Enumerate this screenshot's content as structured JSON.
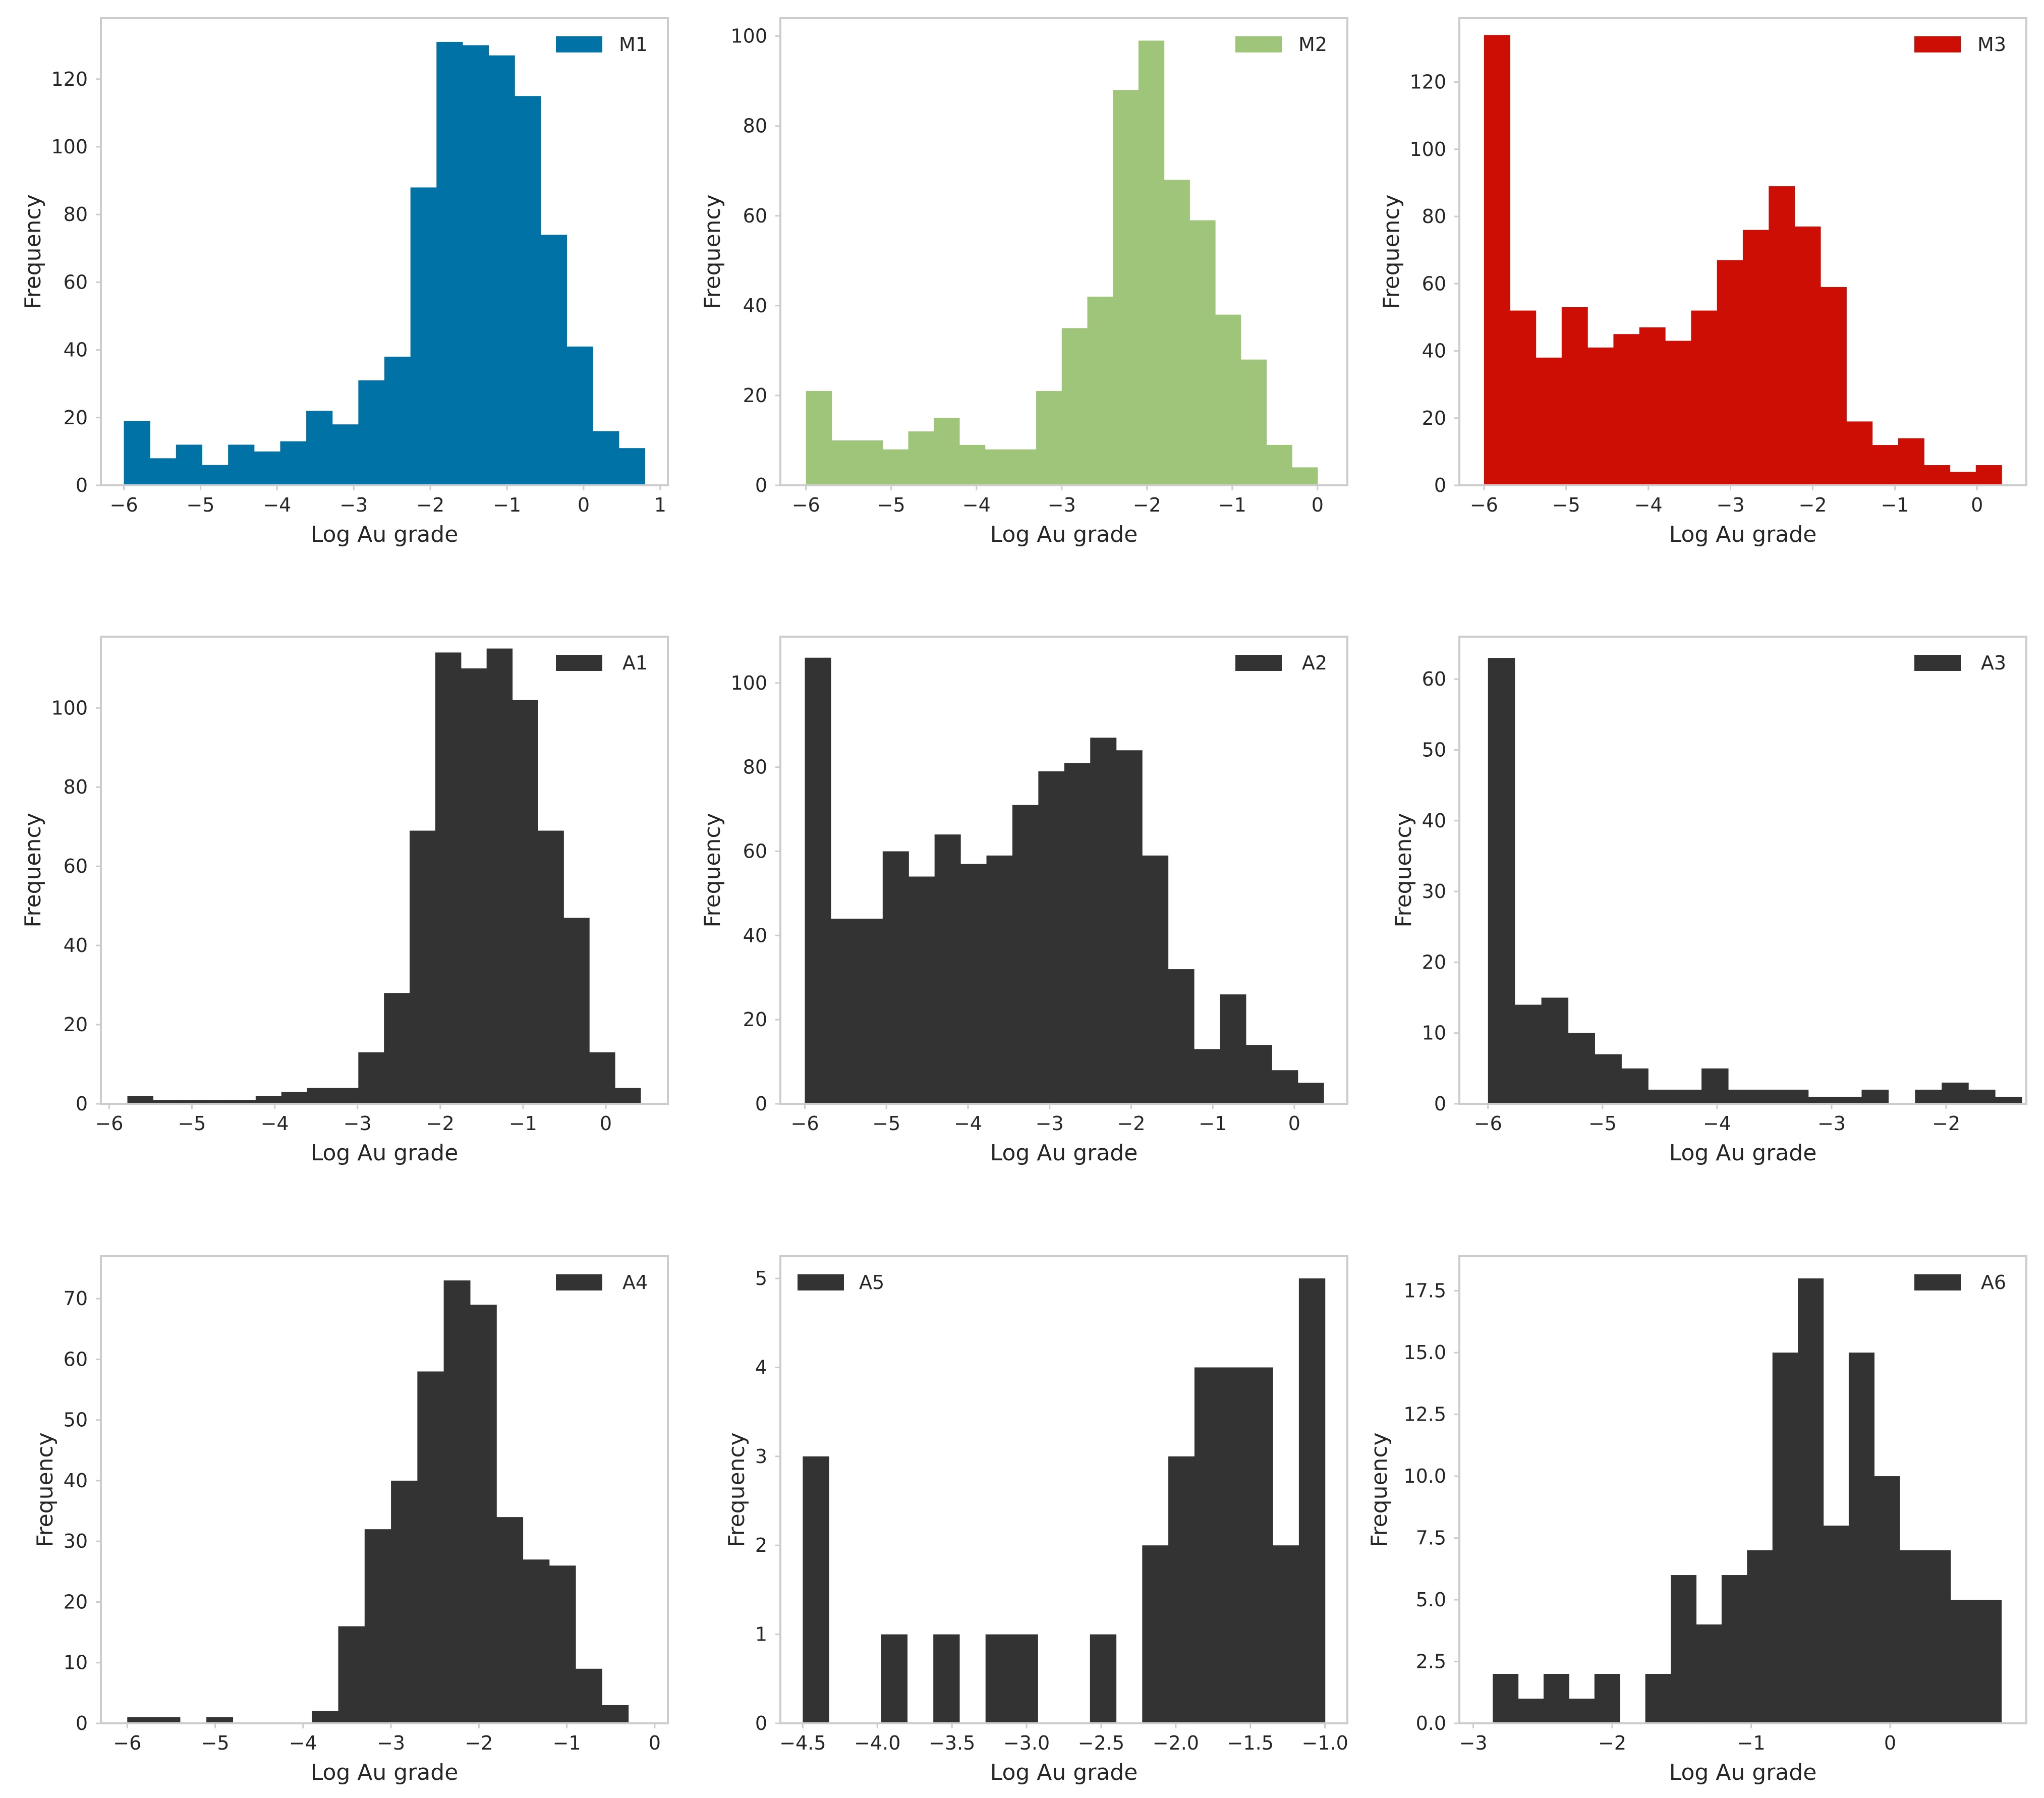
{
  "figure": {
    "title": ""
  },
  "chart_data": [
    {
      "type": "bar",
      "label": "M1",
      "color": "#0072a6",
      "xlabel": "Log Au grade",
      "ylabel": "Frequency",
      "legend": "top-right",
      "xlim": [
        -6.3,
        1.1
      ],
      "ylim": [
        0,
        138
      ],
      "xticks": [
        -6,
        -5,
        -4,
        -3,
        -2,
        -1,
        0,
        1
      ],
      "xtick_labels": [
        "−6",
        "−5",
        "−4",
        "−3",
        "−2",
        "−1",
        "0",
        "1"
      ],
      "yticks": [
        0,
        20,
        40,
        60,
        80,
        100,
        120
      ],
      "ytick_labels": [
        "0",
        "20",
        "40",
        "60",
        "80",
        "100",
        "120"
      ],
      "bin_start": -6.0,
      "bin_width": 0.34,
      "values": [
        19,
        8,
        12,
        6,
        12,
        10,
        13,
        22,
        18,
        31,
        38,
        88,
        131,
        130,
        127,
        115,
        74,
        41,
        16,
        11
      ]
    },
    {
      "type": "bar",
      "label": "M2",
      "color": "#9fc57a",
      "xlabel": "Log Au grade",
      "ylabel": "Frequency",
      "legend": "top-right",
      "xlim": [
        -6.3,
        0.35
      ],
      "ylim": [
        0,
        104
      ],
      "xticks": [
        -6,
        -5,
        -4,
        -3,
        -2,
        -1,
        0
      ],
      "xtick_labels": [
        "−6",
        "−5",
        "−4",
        "−3",
        "−2",
        "−1",
        "0"
      ],
      "yticks": [
        0,
        20,
        40,
        60,
        80,
        100
      ],
      "ytick_labels": [
        "0",
        "20",
        "40",
        "60",
        "80",
        "100"
      ],
      "bin_start": -6.0,
      "bin_width": 0.3,
      "values": [
        21,
        10,
        10,
        8,
        12,
        15,
        9,
        8,
        8,
        21,
        35,
        42,
        88,
        99,
        68,
        59,
        38,
        28,
        9,
        4
      ]
    },
    {
      "type": "bar",
      "label": "M3",
      "color": "#cc0e04",
      "xlabel": "Log Au grade",
      "ylabel": "Frequency",
      "legend": "top-right",
      "xlim": [
        -6.3,
        0.6
      ],
      "ylim": [
        0,
        139
      ],
      "xticks": [
        -6,
        -5,
        -4,
        -3,
        -2,
        -1,
        0
      ],
      "xtick_labels": [
        "−6",
        "−5",
        "−4",
        "−3",
        "−2",
        "−1",
        "0"
      ],
      "yticks": [
        0,
        20,
        40,
        60,
        80,
        100,
        120
      ],
      "ytick_labels": [
        "0",
        "20",
        "40",
        "60",
        "80",
        "100",
        "120"
      ],
      "bin_start": -6.0,
      "bin_width": 0.315,
      "values": [
        134,
        52,
        38,
        53,
        41,
        45,
        47,
        43,
        52,
        67,
        76,
        89,
        77,
        59,
        19,
        12,
        14,
        6,
        4,
        6
      ]
    },
    {
      "type": "bar",
      "label": "A1",
      "color": "#333333",
      "xlabel": "Log Au grade",
      "ylabel": "Frequency",
      "legend": "top-right",
      "xlim": [
        -6.1,
        0.75
      ],
      "ylim": [
        0,
        118
      ],
      "xticks": [
        -6,
        -5,
        -4,
        -3,
        -2,
        -1,
        0
      ],
      "xtick_labels": [
        "−6",
        "−5",
        "−4",
        "−3",
        "−2",
        "−1",
        "0"
      ],
      "yticks": [
        0,
        20,
        40,
        60,
        80,
        100
      ],
      "ytick_labels": [
        "0",
        "20",
        "40",
        "60",
        "80",
        "100"
      ],
      "bin_start": -5.78,
      "bin_width": 0.31,
      "values": [
        2,
        1,
        1,
        1,
        1,
        2,
        3,
        4,
        4,
        13,
        28,
        69,
        114,
        110,
        115,
        102,
        69,
        47,
        13,
        4
      ]
    },
    {
      "type": "bar",
      "label": "A2",
      "color": "#333333",
      "xlabel": "Log Au grade",
      "ylabel": "Frequency",
      "legend": "top-right",
      "xlim": [
        -6.3,
        0.65
      ],
      "ylim": [
        0,
        111
      ],
      "xticks": [
        -6,
        -5,
        -4,
        -3,
        -2,
        -1,
        0
      ],
      "xtick_labels": [
        "−6",
        "−5",
        "−4",
        "−3",
        "−2",
        "−1",
        "0"
      ],
      "yticks": [
        0,
        20,
        40,
        60,
        80,
        100
      ],
      "ytick_labels": [
        "0",
        "20",
        "40",
        "60",
        "80",
        "100"
      ],
      "bin_start": -6.0,
      "bin_width": 0.318,
      "values": [
        106,
        44,
        44,
        60,
        54,
        64,
        57,
        59,
        71,
        79,
        81,
        87,
        84,
        59,
        32,
        13,
        26,
        14,
        8,
        5
      ]
    },
    {
      "type": "bar",
      "label": "A3",
      "color": "#333333",
      "xlabel": "Log Au grade",
      "ylabel": "Frequency",
      "legend": "top-right",
      "xlim": [
        -6.25,
        -1.3
      ],
      "ylim": [
        0,
        66
      ],
      "xticks": [
        -6,
        -5,
        -4,
        -3,
        -2
      ],
      "xtick_labels": [
        "−6",
        "−5",
        "−4",
        "−3",
        "−2"
      ],
      "yticks": [
        0,
        10,
        20,
        30,
        40,
        50,
        60
      ],
      "ytick_labels": [
        "0",
        "10",
        "20",
        "30",
        "40",
        "50",
        "60"
      ],
      "bin_start": -6.0,
      "bin_width": 0.233,
      "values": [
        63,
        14,
        15,
        10,
        7,
        5,
        2,
        2,
        5,
        2,
        2,
        2,
        1,
        1,
        2,
        0,
        2,
        3,
        2,
        1
      ]
    },
    {
      "type": "bar",
      "label": "A4",
      "color": "#333333",
      "xlabel": "Log Au grade",
      "ylabel": "Frequency",
      "legend": "top-right",
      "xlim": [
        -6.3,
        0.15
      ],
      "ylim": [
        0,
        77
      ],
      "xticks": [
        -6,
        -5,
        -4,
        -3,
        -2,
        -1,
        0
      ],
      "xtick_labels": [
        "−6",
        "−5",
        "−4",
        "−3",
        "−2",
        "−1",
        "0"
      ],
      "yticks": [
        0,
        10,
        20,
        30,
        40,
        50,
        60,
        70
      ],
      "ytick_labels": [
        "0",
        "10",
        "20",
        "30",
        "40",
        "50",
        "60",
        "70"
      ],
      "bin_start": -6.0,
      "bin_width": 0.3,
      "values": [
        1,
        1,
        0,
        1,
        0,
        0,
        0,
        2,
        16,
        32,
        40,
        58,
        73,
        69,
        34,
        27,
        26,
        9,
        3,
        0
      ]
    },
    {
      "type": "bar",
      "label": "A5",
      "color": "#333333",
      "xlabel": "Log Au grade",
      "ylabel": "Frequency",
      "legend": "top-left",
      "xlim": [
        -4.65,
        -0.85
      ],
      "ylim": [
        0,
        5.25
      ],
      "xticks": [
        -4.5,
        -4.0,
        -3.5,
        -3.0,
        -2.5,
        -2.0,
        -1.5,
        -1.0
      ],
      "xtick_labels": [
        "−4.5",
        "−4.0",
        "−3.5",
        "−3.0",
        "−2.5",
        "−2.0",
        "−1.5",
        "−1.0"
      ],
      "yticks": [
        0,
        1,
        2,
        3,
        4,
        5
      ],
      "ytick_labels": [
        "0",
        "1",
        "2",
        "3",
        "4",
        "5"
      ],
      "bin_start": -4.5,
      "bin_width": 0.175,
      "values": [
        3,
        0,
        0,
        1,
        0,
        1,
        0,
        1,
        1,
        0,
        0,
        1,
        0,
        2,
        3,
        4,
        4,
        4,
        2,
        5
      ]
    },
    {
      "type": "bar",
      "label": "A6",
      "color": "#333333",
      "xlabel": "Log Au grade",
      "ylabel": "Frequency",
      "legend": "top-right",
      "xlim": [
        -3.1,
        0.98
      ],
      "ylim": [
        0,
        18.9
      ],
      "xticks": [
        -3,
        -2,
        -1,
        0
      ],
      "xtick_labels": [
        "−3",
        "−2",
        "−1",
        "0"
      ],
      "yticks": [
        0,
        2.5,
        5,
        7.5,
        10,
        12.5,
        15,
        17.5
      ],
      "ytick_labels": [
        "0.0",
        "2.5",
        "5.0",
        "7.5",
        "10.0",
        "12.5",
        "15.0",
        "17.5"
      ],
      "bin_start": -2.86,
      "bin_width": 0.183,
      "values": [
        2,
        1,
        2,
        1,
        2,
        0,
        2,
        6,
        4,
        6,
        7,
        15,
        18,
        8,
        15,
        10,
        7,
        7,
        5,
        5
      ]
    }
  ]
}
